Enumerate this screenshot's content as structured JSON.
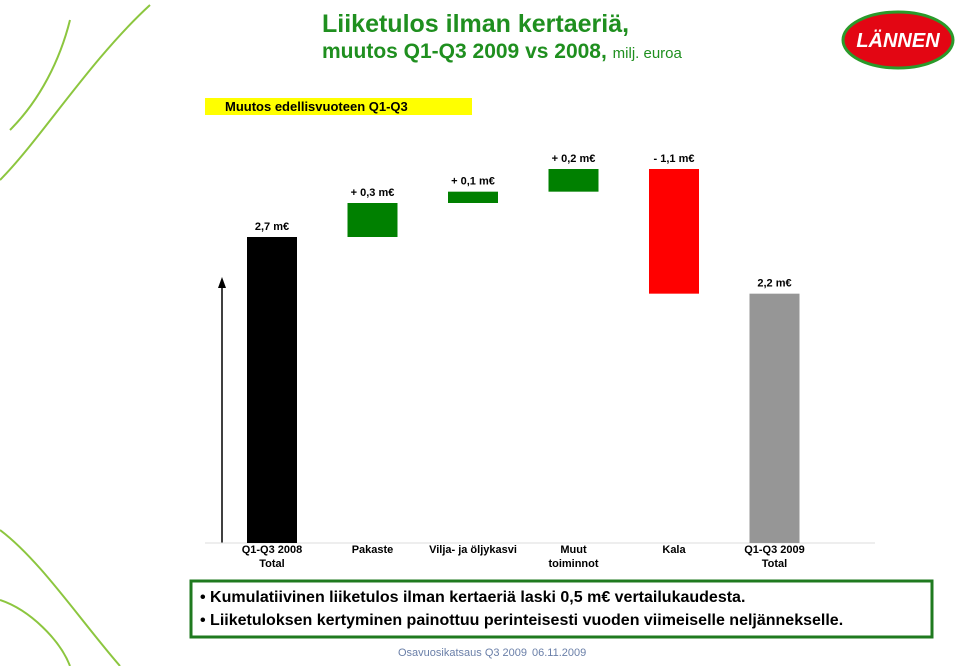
{
  "header": {
    "title_line1": "Liiketulos ilman kertaeriä,",
    "title_line2": "muutos Q1-Q3 2009 vs 2008,",
    "unit": "milj. euroa"
  },
  "logo": {
    "text": "LÄNNEN"
  },
  "chart_data": {
    "type": "waterfall",
    "title": "Muutos edellisvuoteen Q1-Q3",
    "categories": [
      "Q1-Q3 2008 Total",
      "Pakaste",
      "Vilja- ja öljykasvi",
      "Muut toiminnot",
      "Kala",
      "Q1-Q3 2009 Total"
    ],
    "values": [
      2.7,
      0.3,
      0.1,
      0.2,
      -1.1,
      2.2
    ],
    "value_labels": [
      "2,7 m€",
      "+ 0,3 m€",
      "+ 0,1 m€",
      "+ 0,2 m€",
      "- 1,1 m€",
      "2,2 m€"
    ],
    "totals": [
      true,
      false,
      false,
      false,
      false,
      true
    ],
    "colors": [
      "#000000",
      "#008000",
      "#008000",
      "#008000",
      "#ff0000",
      "#969696"
    ],
    "ylim": [
      0,
      3.6
    ]
  },
  "bullets": [
    "Kumulatiivinen liiketulos ilman kertaeriä laski 0,5 m€ vertailukaudesta.",
    "Liiketuloksen kertyminen painottuu perinteisesti vuoden viimeiselle neljännekselle."
  ],
  "footer": {
    "left": "Osavuosikatsaus Q3 2009",
    "right": "06.11.2009"
  }
}
